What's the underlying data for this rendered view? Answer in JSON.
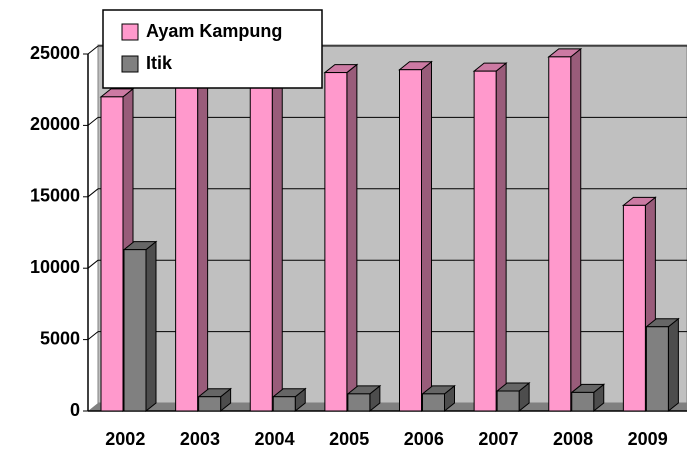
{
  "chart_data": {
    "type": "bar3d",
    "categories": [
      "2002",
      "2003",
      "2004",
      "2005",
      "2006",
      "2007",
      "2008",
      "2009"
    ],
    "series": [
      {
        "name": "Ayam Kampung",
        "color": "#ff99cc",
        "values": [
          22000,
          22900,
          23800,
          23700,
          23900,
          23800,
          24800,
          14400
        ]
      },
      {
        "name": "Itik",
        "color": "#808080",
        "values": [
          11300,
          1000,
          1000,
          1200,
          1200,
          1400,
          1300,
          5900
        ]
      }
    ],
    "ylim": [
      0,
      25000
    ],
    "yticks": [
      0,
      5000,
      10000,
      15000,
      20000,
      25000
    ],
    "grid": true,
    "legend": "top-left"
  }
}
